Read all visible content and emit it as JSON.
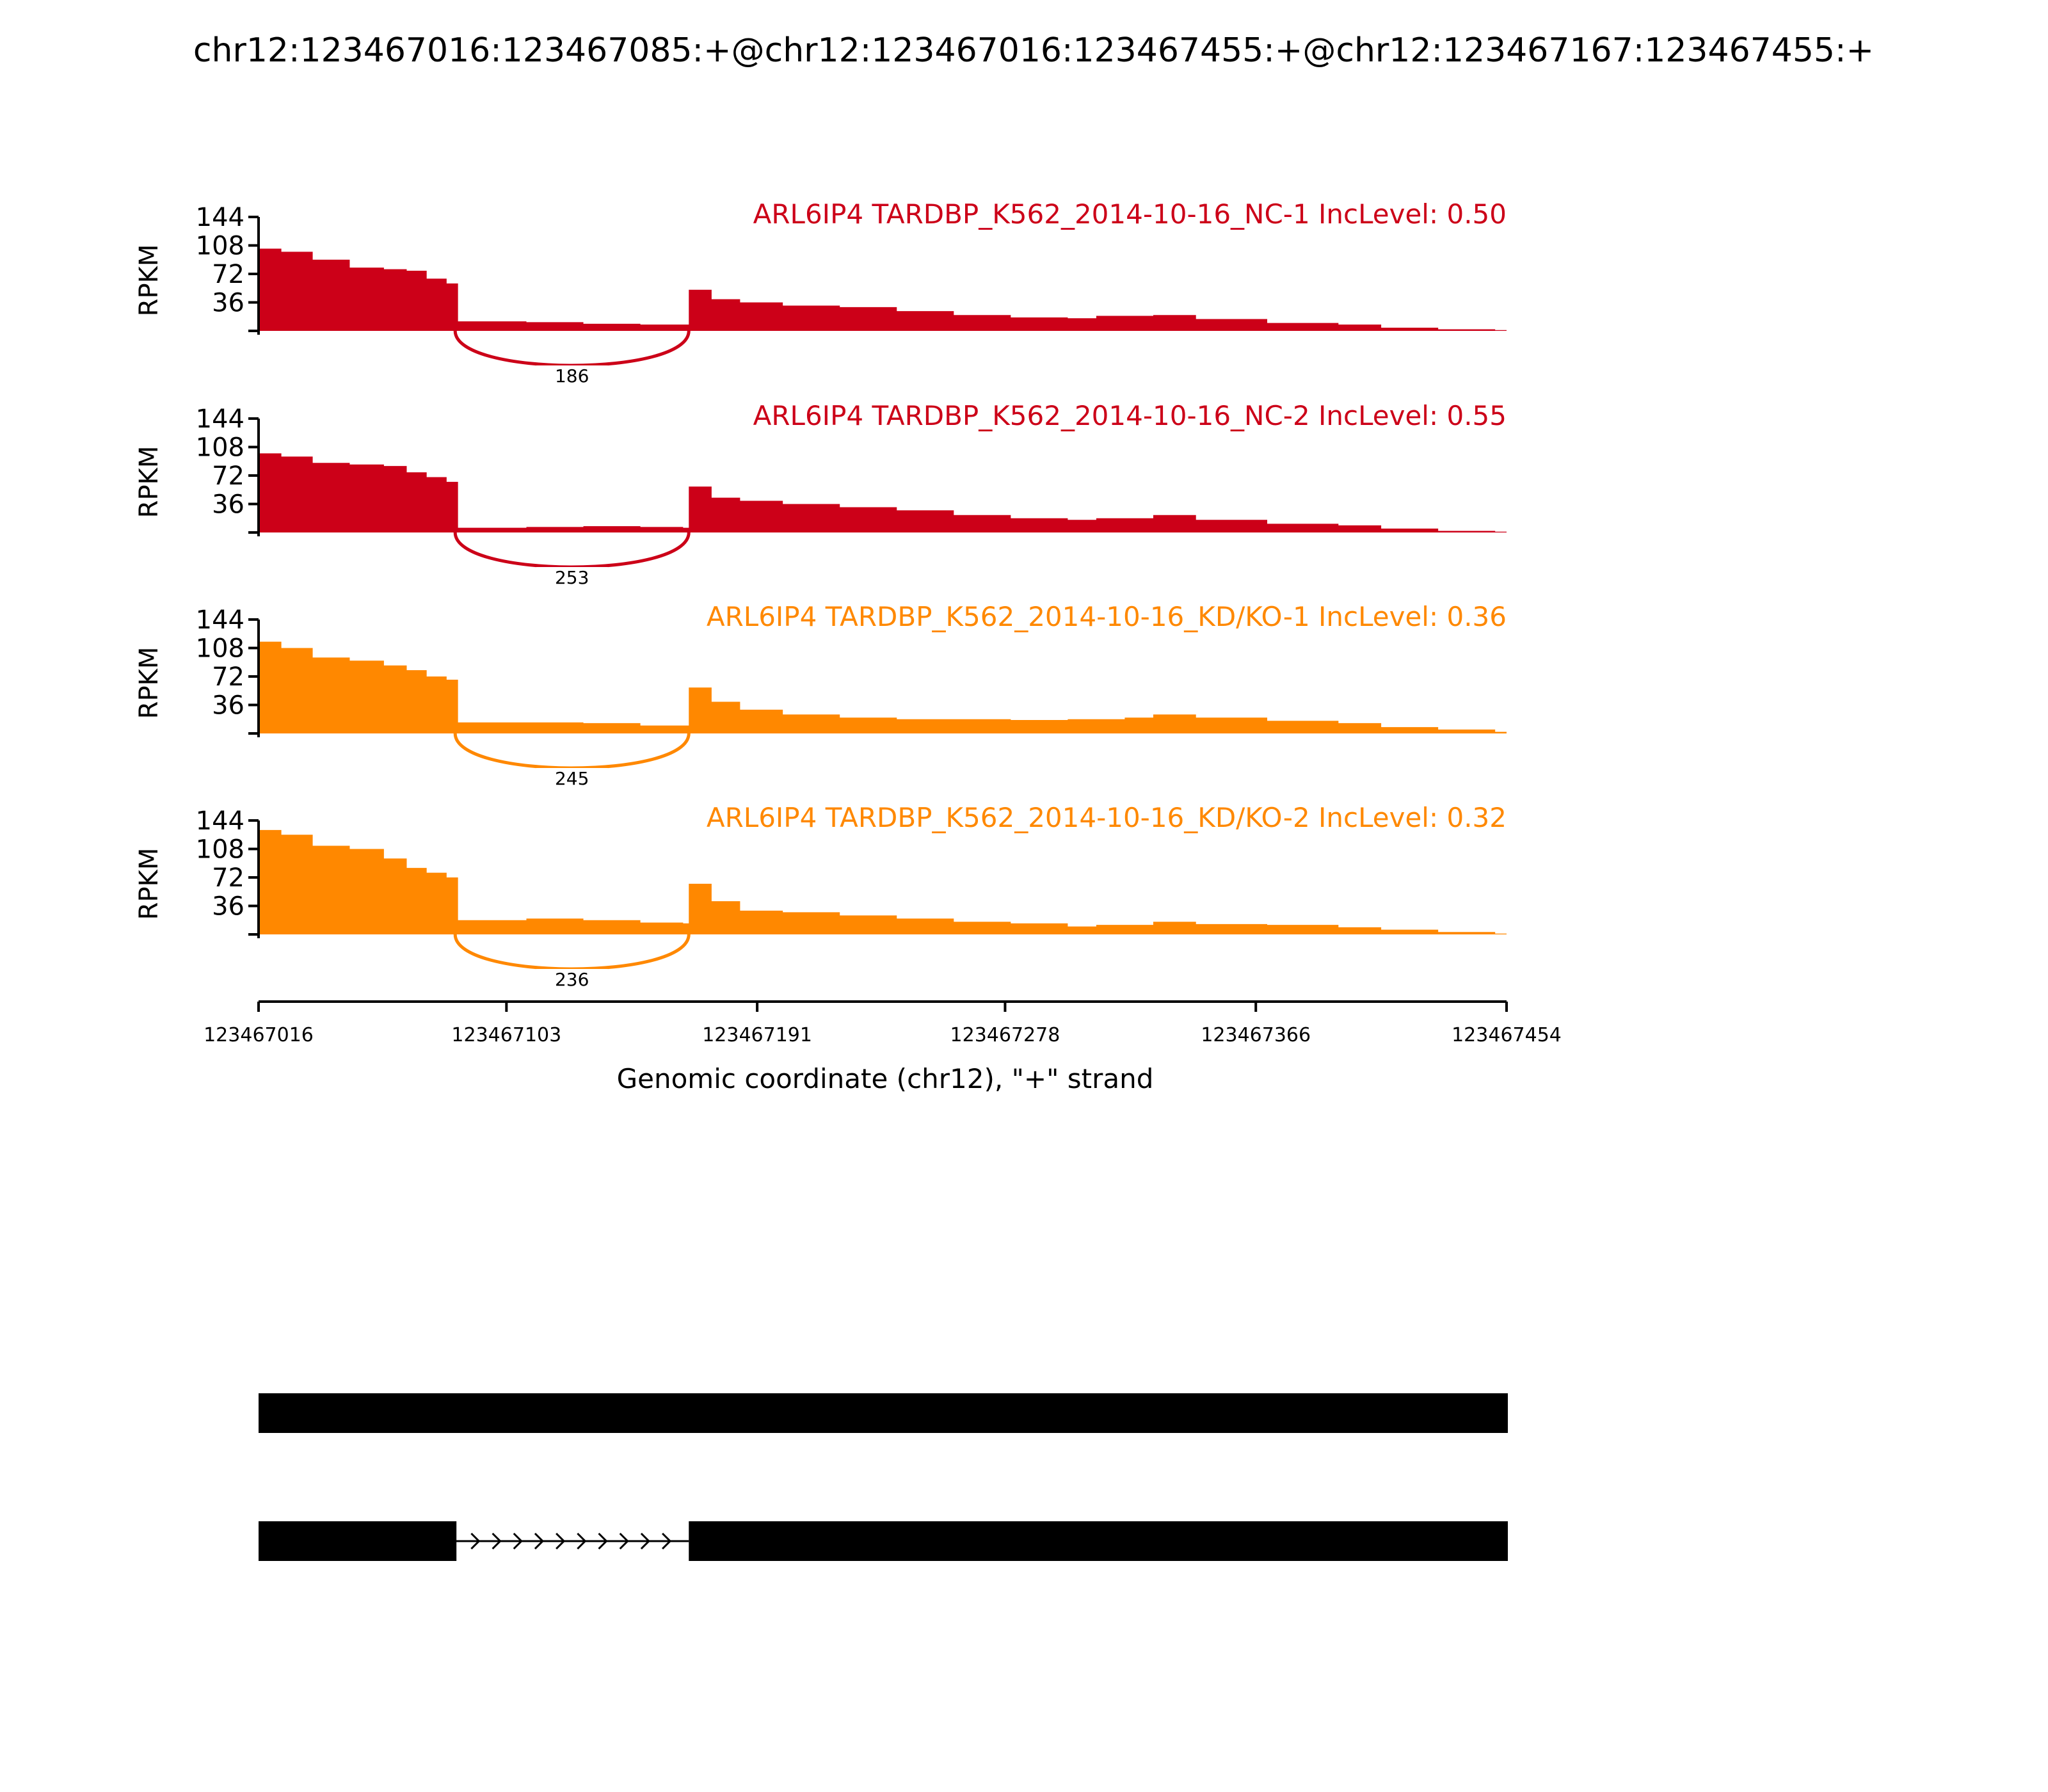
{
  "title": "chr12:123467016:123467085:+@chr12:123467016:123467455:+@chr12:123467167:123467455:+",
  "colors": {
    "nc": "#CC0018",
    "kd": "#FF8800",
    "axis": "#000000",
    "background": "#ffffff"
  },
  "chart_data": {
    "type": "area",
    "title": "chr12:123467016:123467085:+@chr12:123467016:123467455:+@chr12:123467167:123467455:+",
    "xlabel": "Genomic coordinate (chr12), \"+\" strand",
    "ylabel": "RPKM",
    "xlim": [
      123467016,
      123467454
    ],
    "ylim": [
      0,
      144
    ],
    "y_ticks": [
      "36",
      "72",
      "108",
      "144"
    ],
    "x_ticks": [
      "123467016",
      "123467103",
      "123467191",
      "123467278",
      "123467366",
      "123467454"
    ],
    "grid": false,
    "legend": "none",
    "series": [
      {
        "name": "ARL6IP4 TARDBP_K562_2014-10-16_NC-1 IncLevel: 0.50",
        "color_key": "nc",
        "junction": {
          "start": 123467085,
          "end": 123467167,
          "count": "186"
        },
        "coverage": [
          [
            123467016,
            104
          ],
          [
            123467024,
            100
          ],
          [
            123467035,
            90
          ],
          [
            123467048,
            80
          ],
          [
            123467060,
            78
          ],
          [
            123467068,
            76
          ],
          [
            123467075,
            66
          ],
          [
            123467082,
            60
          ],
          [
            123467084,
            60
          ],
          [
            123467086,
            12
          ],
          [
            123467110,
            11
          ],
          [
            123467130,
            9
          ],
          [
            123467150,
            8
          ],
          [
            123467165,
            8
          ],
          [
            123467167,
            52
          ],
          [
            123467175,
            40
          ],
          [
            123467185,
            36
          ],
          [
            123467200,
            32
          ],
          [
            123467220,
            30
          ],
          [
            123467240,
            25
          ],
          [
            123467260,
            20
          ],
          [
            123467280,
            17
          ],
          [
            123467300,
            16
          ],
          [
            123467310,
            19
          ],
          [
            123467330,
            20
          ],
          [
            123467345,
            15
          ],
          [
            123467370,
            10
          ],
          [
            123467395,
            8
          ],
          [
            123467410,
            4
          ],
          [
            123467430,
            2
          ],
          [
            123467450,
            1
          ],
          [
            123467454,
            0
          ]
        ]
      },
      {
        "name": "ARL6IP4 TARDBP_K562_2014-10-16_NC-2 IncLevel: 0.55",
        "color_key": "nc",
        "junction": {
          "start": 123467085,
          "end": 123467167,
          "count": "253"
        },
        "coverage": [
          [
            123467016,
            100
          ],
          [
            123467024,
            96
          ],
          [
            123467035,
            88
          ],
          [
            123467048,
            86
          ],
          [
            123467060,
            84
          ],
          [
            123467068,
            76
          ],
          [
            123467075,
            70
          ],
          [
            123467082,
            64
          ],
          [
            123467084,
            64
          ],
          [
            123467086,
            6
          ],
          [
            123467110,
            7
          ],
          [
            123467130,
            8
          ],
          [
            123467150,
            7
          ],
          [
            123467165,
            6
          ],
          [
            123467167,
            58
          ],
          [
            123467175,
            44
          ],
          [
            123467185,
            40
          ],
          [
            123467200,
            36
          ],
          [
            123467220,
            32
          ],
          [
            123467240,
            28
          ],
          [
            123467260,
            22
          ],
          [
            123467280,
            18
          ],
          [
            123467300,
            16
          ],
          [
            123467310,
            18
          ],
          [
            123467330,
            22
          ],
          [
            123467345,
            16
          ],
          [
            123467370,
            11
          ],
          [
            123467395,
            9
          ],
          [
            123467410,
            5
          ],
          [
            123467430,
            2
          ],
          [
            123467450,
            1
          ],
          [
            123467454,
            0
          ]
        ]
      },
      {
        "name": "ARL6IP4 TARDBP_K562_2014-10-16_KD/KO-1 IncLevel: 0.36",
        "color_key": "kd",
        "junction": {
          "start": 123467085,
          "end": 123467167,
          "count": "245"
        },
        "coverage": [
          [
            123467016,
            116
          ],
          [
            123467024,
            108
          ],
          [
            123467035,
            96
          ],
          [
            123467048,
            92
          ],
          [
            123467060,
            86
          ],
          [
            123467068,
            80
          ],
          [
            123467075,
            72
          ],
          [
            123467082,
            68
          ],
          [
            123467084,
            68
          ],
          [
            123467086,
            14
          ],
          [
            123467110,
            14
          ],
          [
            123467130,
            13
          ],
          [
            123467150,
            10
          ],
          [
            123467165,
            10
          ],
          [
            123467167,
            58
          ],
          [
            123467175,
            40
          ],
          [
            123467185,
            30
          ],
          [
            123467200,
            24
          ],
          [
            123467220,
            20
          ],
          [
            123467240,
            18
          ],
          [
            123467260,
            18
          ],
          [
            123467280,
            17
          ],
          [
            123467300,
            18
          ],
          [
            123467320,
            20
          ],
          [
            123467330,
            24
          ],
          [
            123467345,
            20
          ],
          [
            123467370,
            16
          ],
          [
            123467395,
            13
          ],
          [
            123467410,
            8
          ],
          [
            123467430,
            5
          ],
          [
            123467450,
            2
          ],
          [
            123467454,
            0
          ]
        ]
      },
      {
        "name": "ARL6IP4 TARDBP_K562_2014-10-16_KD/KO-2 IncLevel: 0.32",
        "color_key": "kd",
        "junction": {
          "start": 123467085,
          "end": 123467167,
          "count": "236"
        },
        "coverage": [
          [
            123467016,
            132
          ],
          [
            123467024,
            126
          ],
          [
            123467035,
            112
          ],
          [
            123467048,
            108
          ],
          [
            123467060,
            96
          ],
          [
            123467068,
            84
          ],
          [
            123467075,
            78
          ],
          [
            123467082,
            72
          ],
          [
            123467084,
            72
          ],
          [
            123467086,
            18
          ],
          [
            123467110,
            20
          ],
          [
            123467130,
            18
          ],
          [
            123467150,
            15
          ],
          [
            123467165,
            14
          ],
          [
            123467167,
            64
          ],
          [
            123467175,
            42
          ],
          [
            123467185,
            30
          ],
          [
            123467200,
            28
          ],
          [
            123467220,
            24
          ],
          [
            123467240,
            20
          ],
          [
            123467260,
            16
          ],
          [
            123467280,
            14
          ],
          [
            123467300,
            10
          ],
          [
            123467310,
            12
          ],
          [
            123467330,
            16
          ],
          [
            123467345,
            13
          ],
          [
            123467370,
            12
          ],
          [
            123467395,
            9
          ],
          [
            123467410,
            6
          ],
          [
            123467430,
            3
          ],
          [
            123467450,
            1
          ],
          [
            123467454,
            0
          ]
        ]
      }
    ],
    "isoforms": [
      {
        "exons": [
          [
            123467016,
            123467455
          ]
        ],
        "introns": []
      },
      {
        "exons": [
          [
            123467016,
            123467085
          ],
          [
            123467167,
            123467455
          ]
        ],
        "introns": [
          [
            123467085,
            123467167
          ]
        ]
      }
    ]
  }
}
